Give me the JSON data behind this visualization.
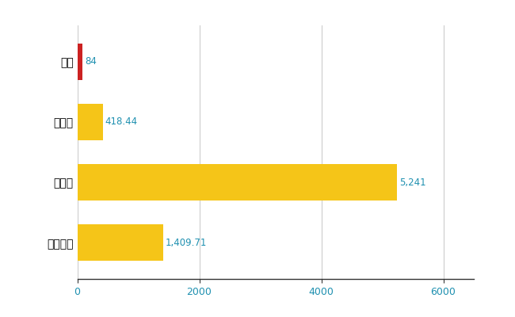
{
  "categories": [
    "塗町",
    "県平均",
    "県最大",
    "全国平均"
  ],
  "values": [
    84,
    418.44,
    5241,
    1409.71
  ],
  "bar_colors": [
    "#cc2222",
    "#f5c518",
    "#f5c518",
    "#f5c518"
  ],
  "labels": [
    "84",
    "418.44",
    "5,241",
    "1,409.71"
  ],
  "xlim": [
    0,
    6500
  ],
  "xticks": [
    0,
    2000,
    4000,
    6000
  ],
  "xtick_labels": [
    "0",
    "2000",
    "4000",
    "6000"
  ],
  "background_color": "#ffffff",
  "grid_color": "#cccccc",
  "label_color": "#1e90b0",
  "bar_height": 0.6,
  "figsize": [
    6.5,
    4.0
  ],
  "dpi": 100
}
